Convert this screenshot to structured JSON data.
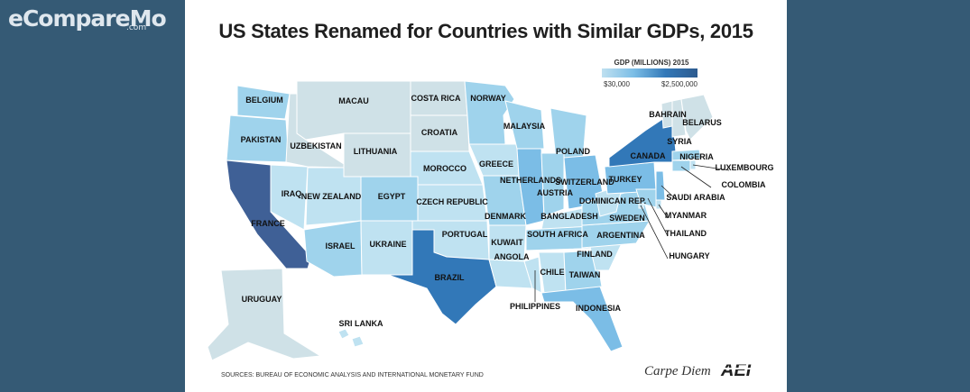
{
  "logo": {
    "brand": "eCompareMo",
    "suffix": ".com"
  },
  "title": "US States Renamed for Countries with Similar GDPs, 2015",
  "legend": {
    "title": "GDP (MILLIONS) 2015",
    "min": "$30,000",
    "max": "$2,500,000"
  },
  "source": "SOURCES: BUREAU OF ECONOMIC ANALYSIS AND INTERNATIONAL MONETARY FUND",
  "credit": "Carpe Diem",
  "publisher": "AEI",
  "colors": {
    "c1": "#cfe1e7",
    "c2": "#bfe2f1",
    "c3": "#9fd3ec",
    "c4": "#7bbde6",
    "c5": "#3278b8",
    "c6": "#3f6096",
    "panel": "#ffffff",
    "background": "#355a75"
  },
  "states": [
    {
      "state": "WA",
      "country": "BELGIUM",
      "shade": "c3"
    },
    {
      "state": "OR",
      "country": "PAKISTAN",
      "shade": "c3"
    },
    {
      "state": "CA",
      "country": "FRANCE",
      "shade": "c6"
    },
    {
      "state": "NV",
      "country": "IRAQ",
      "shade": "c2"
    },
    {
      "state": "ID",
      "country": "UZBEKISTAN",
      "shade": "c1"
    },
    {
      "state": "MT",
      "country": "MACAU",
      "shade": "c1"
    },
    {
      "state": "WY",
      "country": "LITHUANIA",
      "shade": "c1"
    },
    {
      "state": "UT",
      "country": "NEW ZEALAND",
      "shade": "c2"
    },
    {
      "state": "AZ",
      "country": "ISRAEL",
      "shade": "c3"
    },
    {
      "state": "CO",
      "country": "EGYPT",
      "shade": "c3"
    },
    {
      "state": "NM",
      "country": "UKRAINE",
      "shade": "c2"
    },
    {
      "state": "ND",
      "country": "COSTA RICA",
      "shade": "c1"
    },
    {
      "state": "SD",
      "country": "CROATIA",
      "shade": "c1"
    },
    {
      "state": "NE",
      "country": "MOROCCO",
      "shade": "c2"
    },
    {
      "state": "KS",
      "country": "CZECH REPUBLIC",
      "shade": "c2"
    },
    {
      "state": "OK",
      "country": "PORTUGAL",
      "shade": "c2"
    },
    {
      "state": "TX",
      "country": "BRAZIL",
      "shade": "c5"
    },
    {
      "state": "MN",
      "country": "NORWAY",
      "shade": "c3"
    },
    {
      "state": "IA",
      "country": "GREECE",
      "shade": "c2"
    },
    {
      "state": "MO",
      "country": "DENMARK",
      "shade": "c3"
    },
    {
      "state": "AR",
      "country": "KUWAIT",
      "shade": "c2"
    },
    {
      "state": "LA",
      "country": "ANGOLA",
      "shade": "c2"
    },
    {
      "state": "MS",
      "country": "PHILIPPINES",
      "shade": "c2"
    },
    {
      "state": "WI",
      "country": "MALAYSIA",
      "shade": "c3"
    },
    {
      "state": "IL",
      "country": "NETHERLANDS",
      "shade": "c4"
    },
    {
      "state": "MI",
      "country": "POLAND",
      "shade": "c3"
    },
    {
      "state": "IN",
      "country": "AUSTRIA",
      "shade": "c3"
    },
    {
      "state": "OH",
      "country": "SWITZERLAND",
      "shade": "c4"
    },
    {
      "state": "KY",
      "country": "BANGLADESH",
      "shade": "c2"
    },
    {
      "state": "TN",
      "country": "SOUTH AFRICA",
      "shade": "c3"
    },
    {
      "state": "AL",
      "country": "CHILE",
      "shade": "c2"
    },
    {
      "state": "GA",
      "country": "TAIWAN",
      "shade": "c3"
    },
    {
      "state": "FL",
      "country": "INDONESIA",
      "shade": "c4"
    },
    {
      "state": "SC",
      "country": "FINLAND",
      "shade": "c2"
    },
    {
      "state": "NC",
      "country": "ARGENTINA",
      "shade": "c3"
    },
    {
      "state": "VA",
      "country": "SWEDEN",
      "shade": "c3"
    },
    {
      "state": "WV",
      "country": "DOMINICAN REP.",
      "shade": "c2"
    },
    {
      "state": "PA",
      "country": "TURKEY",
      "shade": "c4"
    },
    {
      "state": "NY",
      "country": "CANADA",
      "shade": "c5"
    },
    {
      "state": "VT",
      "country": "BAHRAIN",
      "shade": "c1"
    },
    {
      "state": "NH",
      "country": "SYRIA",
      "shade": "c1"
    },
    {
      "state": "ME",
      "country": "BELARUS",
      "shade": "c1"
    },
    {
      "state": "MA",
      "country": "NIGERIA",
      "shade": "c3"
    },
    {
      "state": "RI",
      "country": "LUXEMBOURG",
      "shade": "c2"
    },
    {
      "state": "CT",
      "country": "COLOMBIA",
      "shade": "c3"
    },
    {
      "state": "NJ",
      "country": "SAUDI ARABIA",
      "shade": "c4"
    },
    {
      "state": "DE",
      "country": "MYANMAR",
      "shade": "c2"
    },
    {
      "state": "MD",
      "country": "THAILAND",
      "shade": "c3"
    },
    {
      "state": "DC",
      "country": "HUNGARY",
      "shade": "c2"
    },
    {
      "state": "AK",
      "country": "URUGUAY",
      "shade": "c1"
    },
    {
      "state": "HI",
      "country": "SRI LANKA",
      "shade": "c2"
    }
  ]
}
